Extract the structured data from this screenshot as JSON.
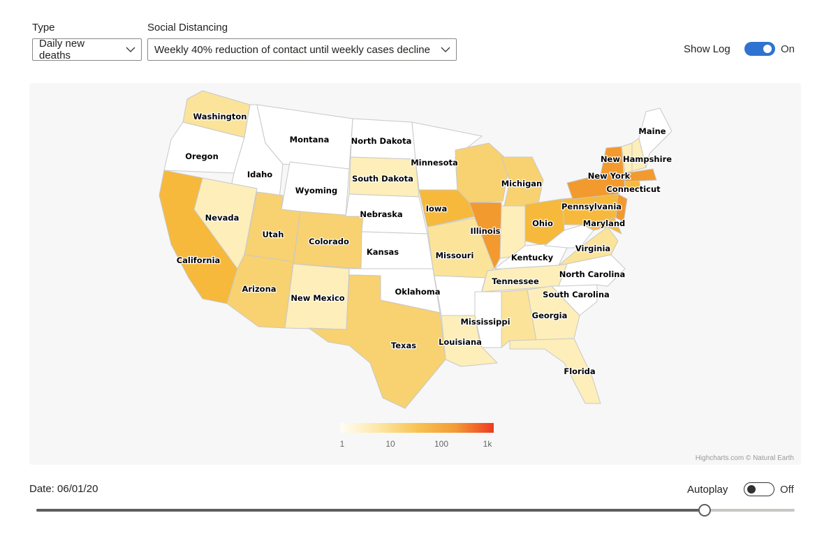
{
  "controls": {
    "type_label": "Type",
    "type_value": "Daily new deaths",
    "distancing_label": "Social Distancing",
    "distancing_value": "Weekly 40% reduction of contact until weekly cases decline",
    "show_log_label": "Show Log",
    "show_log_state": "On"
  },
  "map": {
    "credit": "Highcharts.com © Natural Earth",
    "legend_ticks": [
      "1",
      "10",
      "100",
      "1k"
    ],
    "colors": {
      "none": "#ffffff",
      "pale": "#fdeeba",
      "light": "#fbe39a",
      "mid": "#f8d270",
      "strong": "#f6b93c",
      "heavy": "#f29a2e"
    },
    "states": {
      "washington": {
        "name": "Washington",
        "level": "light"
      },
      "oregon": {
        "name": "Oregon",
        "level": "none"
      },
      "california": {
        "name": "California",
        "level": "strong"
      },
      "idaho": {
        "name": "Idaho",
        "level": "none"
      },
      "nevada": {
        "name": "Nevada",
        "level": "pale"
      },
      "montana": {
        "name": "Montana",
        "level": "none"
      },
      "wyoming": {
        "name": "Wyoming",
        "level": "none"
      },
      "utah": {
        "name": "Utah",
        "level": "mid"
      },
      "colorado": {
        "name": "Colorado",
        "level": "mid"
      },
      "arizona": {
        "name": "Arizona",
        "level": "mid"
      },
      "new_mexico": {
        "name": "New Mexico",
        "level": "pale"
      },
      "north_dakota": {
        "name": "North Dakota",
        "level": "none"
      },
      "south_dakota": {
        "name": "South Dakota",
        "level": "pale"
      },
      "nebraska": {
        "name": "Nebraska",
        "level": "none"
      },
      "kansas": {
        "name": "Kansas",
        "level": "none"
      },
      "oklahoma": {
        "name": "Oklahoma",
        "level": "none"
      },
      "texas": {
        "name": "Texas",
        "level": "mid"
      },
      "minnesota": {
        "name": "Minnesota",
        "level": "none"
      },
      "iowa": {
        "name": "Iowa",
        "level": "strong"
      },
      "missouri": {
        "name": "Missouri",
        "level": "light"
      },
      "arkansas": {
        "name": "",
        "level": "none"
      },
      "louisiana": {
        "name": "Louisiana",
        "level": "pale"
      },
      "wisconsin": {
        "name": "",
        "level": "mid"
      },
      "illinois": {
        "name": "Illinois",
        "level": "heavy"
      },
      "michigan": {
        "name": "Michigan",
        "level": "mid"
      },
      "indiana": {
        "name": "",
        "level": "pale"
      },
      "ohio": {
        "name": "Ohio",
        "level": "strong"
      },
      "kentucky": {
        "name": "Kentucky",
        "level": "none"
      },
      "tennessee": {
        "name": "Tennessee",
        "level": "pale"
      },
      "mississippi": {
        "name": "Mississippi",
        "level": "none"
      },
      "alabama": {
        "name": "",
        "level": "light"
      },
      "georgia": {
        "name": "Georgia",
        "level": "pale"
      },
      "florida": {
        "name": "Florida",
        "level": "pale"
      },
      "south_carolina": {
        "name": "South Carolina",
        "level": "none"
      },
      "north_carolina": {
        "name": "North Carolina",
        "level": "none"
      },
      "virginia": {
        "name": "Virginia",
        "level": "light"
      },
      "west_virginia": {
        "name": "",
        "level": "none"
      },
      "pennsylvania": {
        "name": "Pennsylvania",
        "level": "strong"
      },
      "maryland": {
        "name": "Maryland",
        "level": "strong"
      },
      "new_jersey": {
        "name": "",
        "level": "heavy"
      },
      "new_york": {
        "name": "New York",
        "level": "heavy"
      },
      "connecticut": {
        "name": "Connecticut",
        "level": "strong"
      },
      "massachusetts": {
        "name": "",
        "level": "heavy"
      },
      "vermont": {
        "name": "",
        "level": "pale"
      },
      "new_hampshire": {
        "name": "New Hampshire",
        "level": "pale"
      },
      "maine": {
        "name": "Maine",
        "level": "none"
      }
    }
  },
  "timeline": {
    "date_label": "Date: 06/01/20",
    "autoplay_label": "Autoplay",
    "autoplay_state": "Off",
    "progress": 0.88
  }
}
